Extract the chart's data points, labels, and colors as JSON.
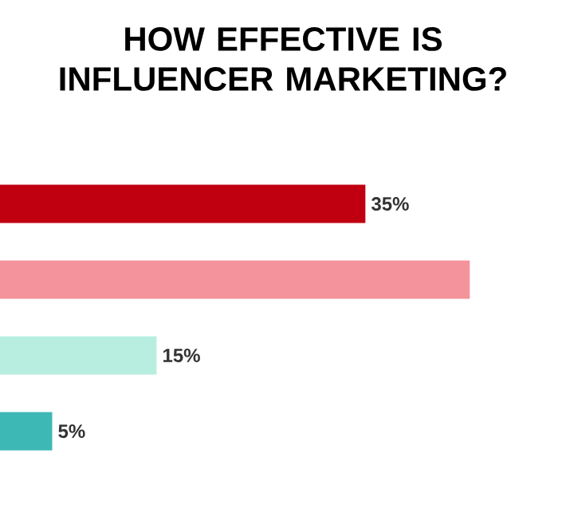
{
  "chart_data": {
    "type": "bar",
    "orientation": "horizontal",
    "title": "HOW EFFECTIVE IS INFLUENCER MARKETING?",
    "categories": [
      null,
      null,
      null,
      null
    ],
    "values": [
      35,
      45,
      15,
      5
    ],
    "colors": [
      "#c00010",
      "#f4939c",
      "#b8eee0",
      "#3db8b5"
    ],
    "value_labels": [
      "35%",
      null,
      "15%",
      "5%"
    ]
  }
}
